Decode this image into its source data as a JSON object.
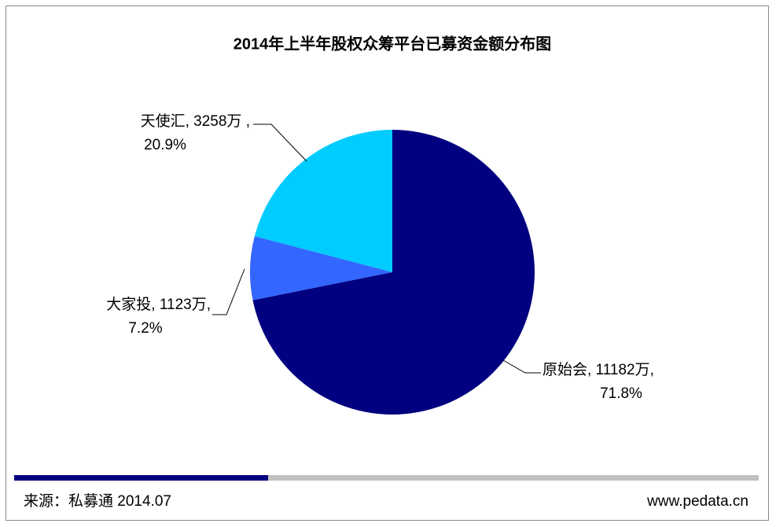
{
  "chart_data": {
    "type": "pie",
    "title": "2014年上半年股权众筹平台已募资金额分布图",
    "categories": [
      "原始会",
      "大家投",
      "天使汇"
    ],
    "values": [
      11182,
      1123,
      3258
    ],
    "value_labels": [
      "原始会, 11182万,",
      "大家投, 1123万,",
      "天使汇, 3258万 ,"
    ],
    "percents": [
      71.8,
      7.2,
      20.9
    ],
    "percent_labels": [
      "71.8%",
      "7.2%",
      "20.9%"
    ],
    "colors": [
      "#000080",
      "#3366ff",
      "#00ccff"
    ],
    "source": "来源：私募通 2014.07",
    "website": "www.pedata.cn"
  }
}
